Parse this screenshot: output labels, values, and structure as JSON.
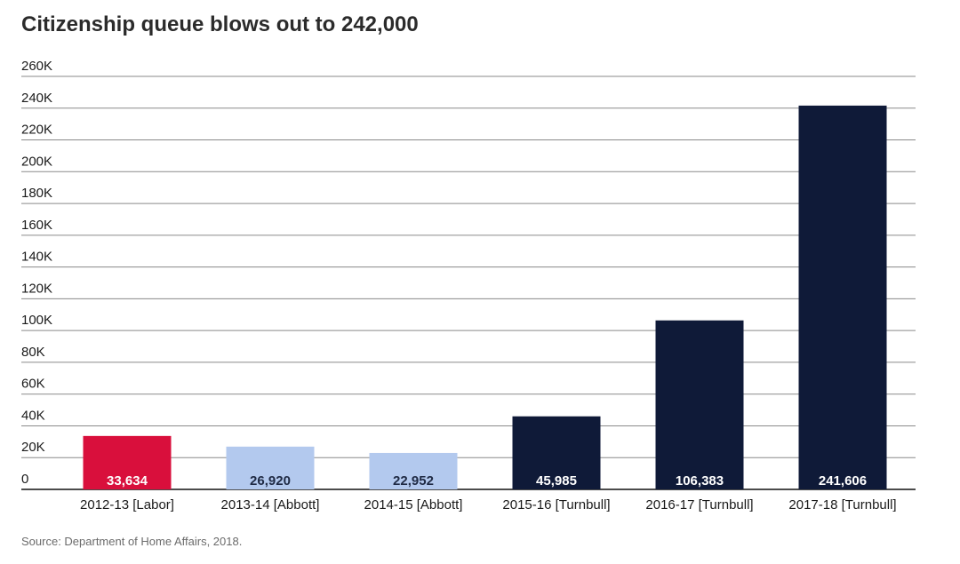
{
  "title": "Citizenship queue blows out to 242,000",
  "source": "Source: Department of Home Affairs, 2018.",
  "chart_data": {
    "type": "bar",
    "title": "Citizenship queue blows out to 242,000",
    "xlabel": "",
    "ylabel": "",
    "ylim": [
      0,
      260000
    ],
    "yticks": [
      0,
      20000,
      40000,
      60000,
      80000,
      100000,
      120000,
      140000,
      160000,
      180000,
      200000,
      220000,
      240000,
      260000
    ],
    "ytick_labels": [
      "0",
      "20K",
      "40K",
      "60K",
      "80K",
      "100K",
      "120K",
      "140K",
      "160K",
      "180K",
      "200K",
      "220K",
      "240K",
      "260K"
    ],
    "grid": true,
    "categories": [
      "2012-13 [Labor]",
      "2013-14 [Abbott]",
      "2014-15 [Abbott]",
      "2015-16 [Turnbull]",
      "2016-17 [Turnbull]",
      "2017-18 [Turnbull]"
    ],
    "values": [
      33634,
      26920,
      22952,
      45985,
      106383,
      241606
    ],
    "data_labels": [
      "33,634",
      "26,920",
      "22,952",
      "45,985",
      "106,383",
      "241,606"
    ],
    "colors": [
      "#d90f3c",
      "#b3c9ee",
      "#b3c9ee",
      "#0f1a38",
      "#0f1a38",
      "#0f1a38"
    ],
    "label_colors": [
      "#ffffff",
      "#1f2a44",
      "#1f2a44",
      "#ffffff",
      "#ffffff",
      "#ffffff"
    ]
  }
}
